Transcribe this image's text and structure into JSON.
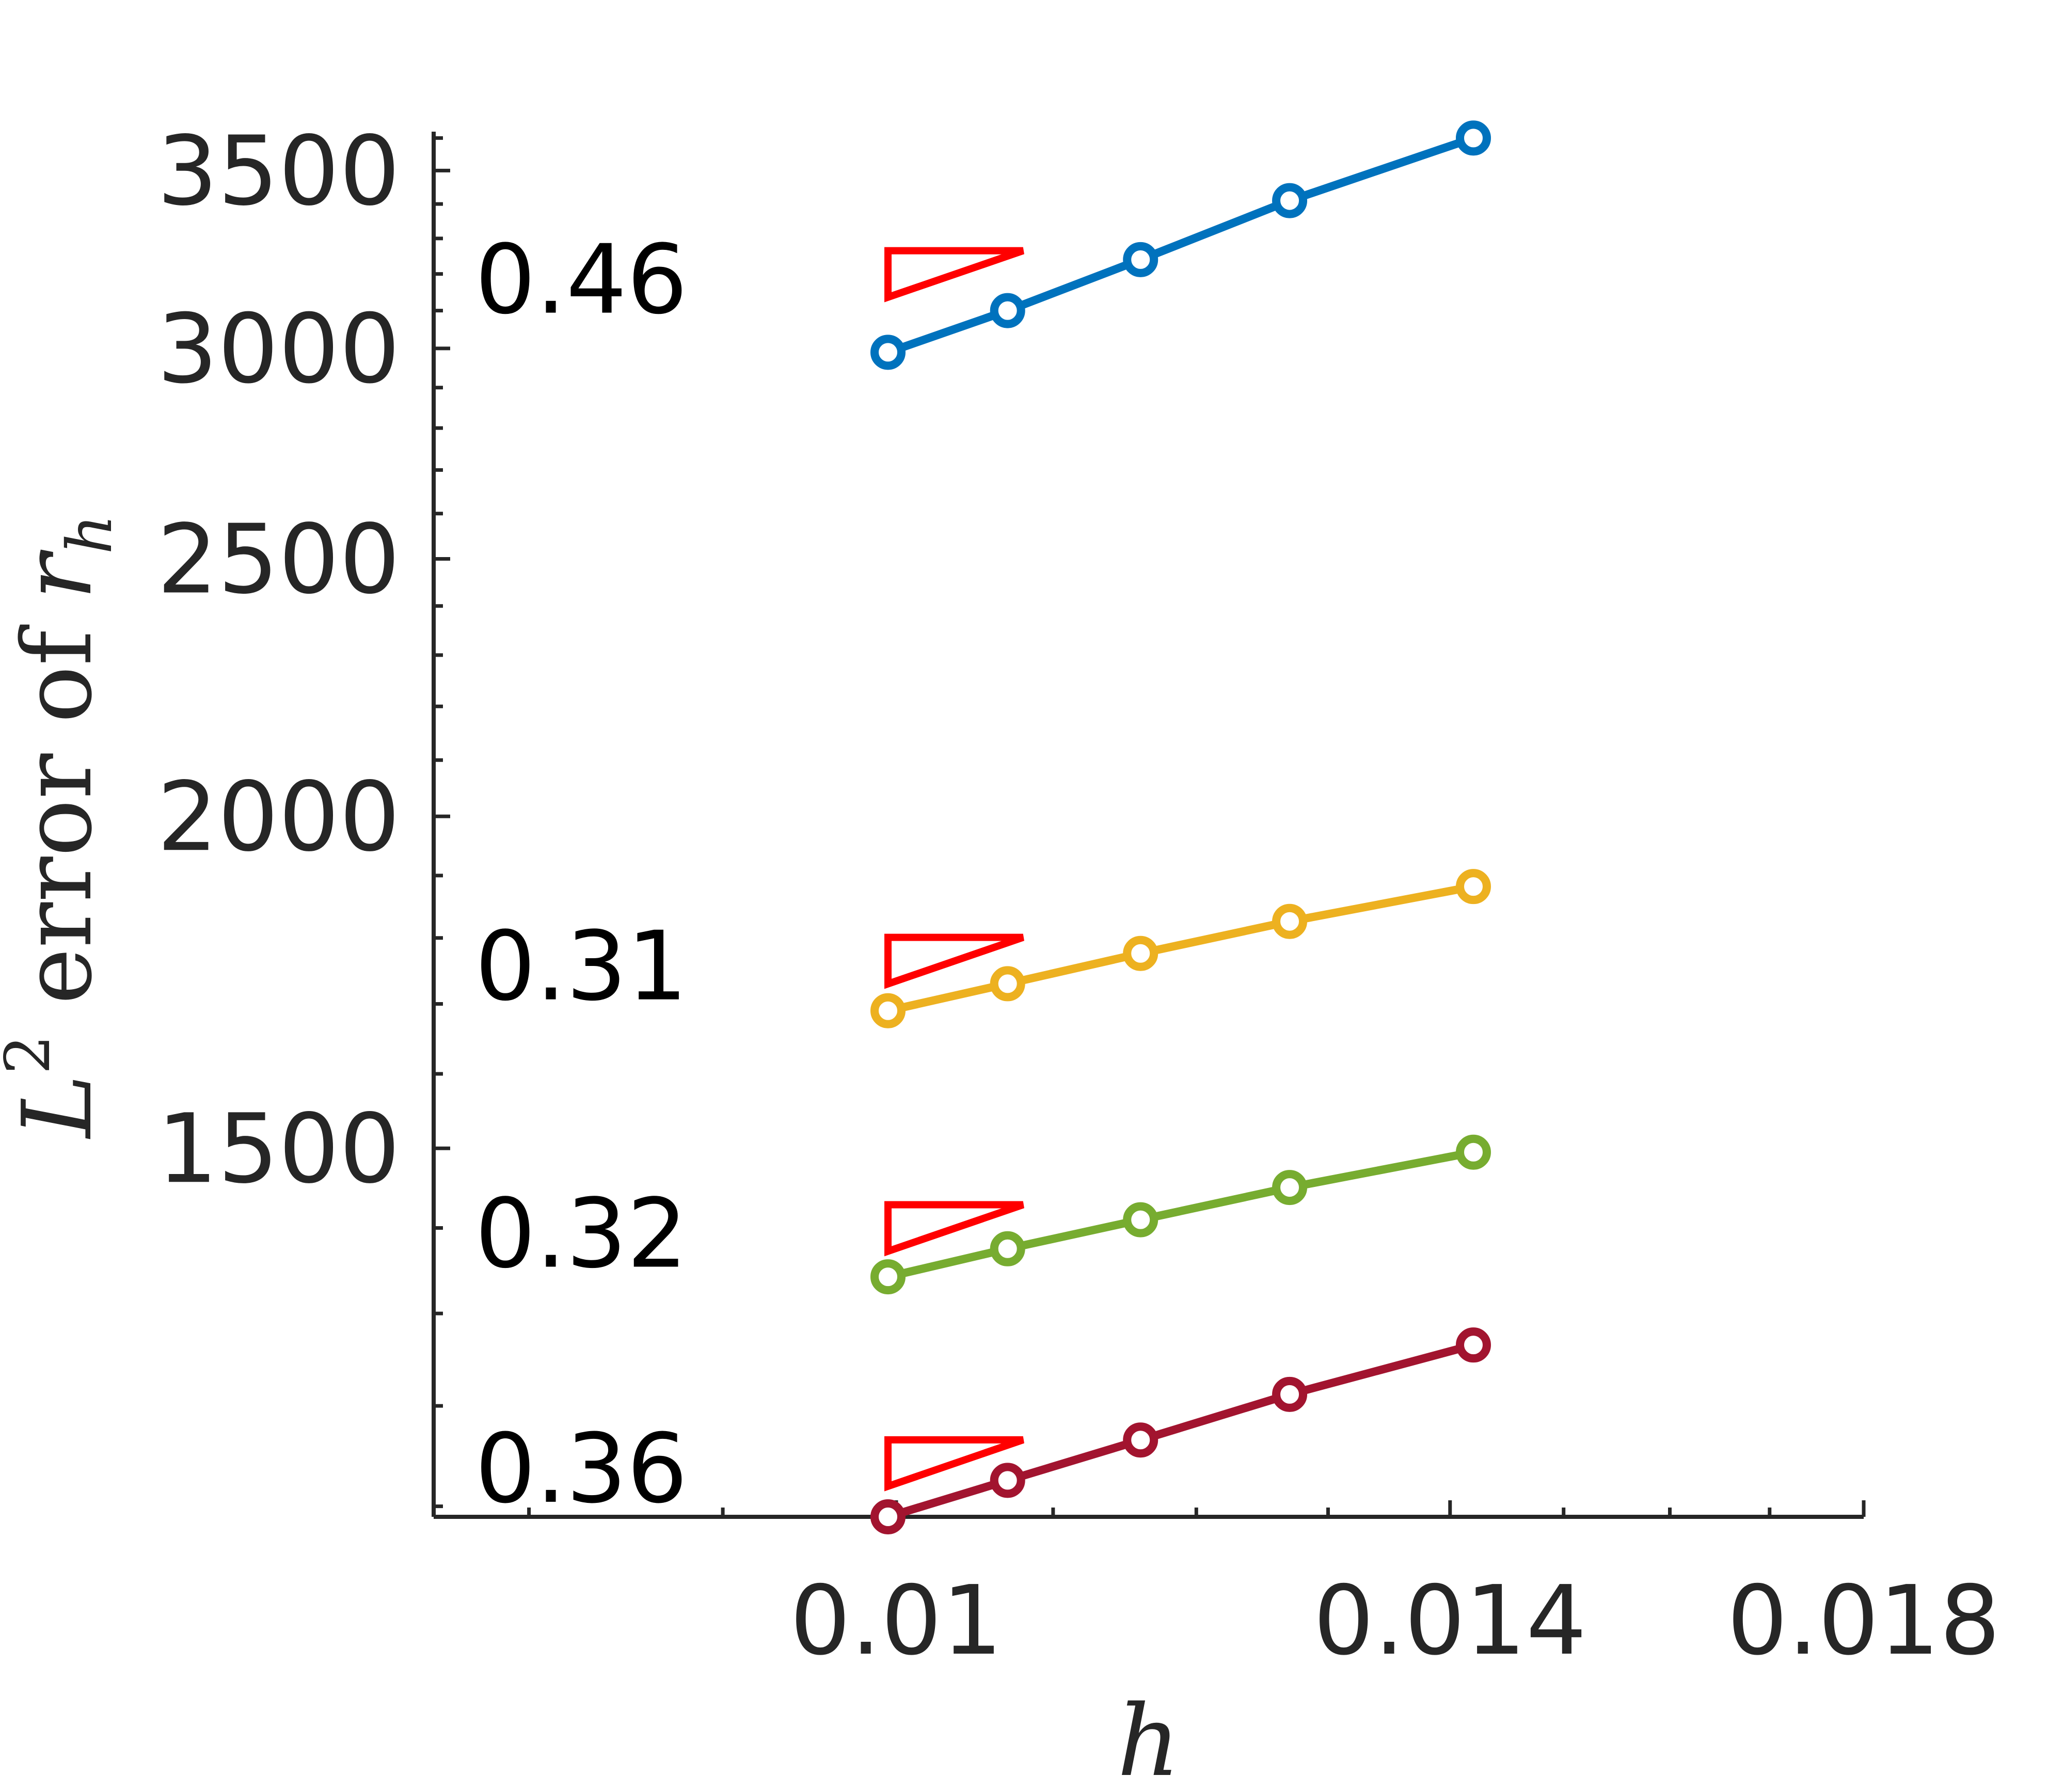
{
  "chart_data": {
    "type": "line",
    "title": "",
    "xlabel": "h",
    "ylabel": {
      "base": "L",
      "superscript": "2",
      "text": " error of ",
      "var": "r",
      "subscript": "h"
    },
    "x_scale": "log",
    "y_scale": "log",
    "xlim": [
      0.00755,
      0.018
    ],
    "ylim": [
      1090,
      3620
    ],
    "x_ticks": [
      0.01,
      0.014,
      0.018
    ],
    "x_tick_labels": [
      "0.01",
      "0.014",
      "0.018"
    ],
    "x_minor_ticks": [
      0.008,
      0.009,
      0.01,
      0.011,
      0.012,
      0.013,
      0.014,
      0.015,
      0.016,
      0.017,
      0.018
    ],
    "y_ticks": [
      1500,
      2000,
      2500,
      3000,
      3500
    ],
    "y_tick_labels": [
      "1500",
      "2000",
      "2500",
      "3000",
      "3500"
    ],
    "y_minor_ticks": [
      1100,
      1200,
      1300,
      1400,
      1500,
      1600,
      1700,
      1800,
      1900,
      2000,
      2100,
      2200,
      2300,
      2400,
      2500,
      2600,
      2700,
      2800,
      2900,
      3000,
      3100,
      3200,
      3300,
      3400,
      3500,
      3600
    ],
    "grid": false,
    "series": [
      {
        "color": "#0072BD",
        "x": [
          0.00995,
          0.0107,
          0.0116,
          0.0127,
          0.0142
        ],
        "y": [
          2990,
          3100,
          3240,
          3410,
          3600
        ],
        "rate_label": "0.46",
        "triangle_y": 3200
      },
      {
        "color": "#EDB120",
        "x": [
          0.00995,
          0.0107,
          0.0116,
          0.0127,
          0.0142
        ],
        "y": [
          1690,
          1730,
          1776,
          1826,
          1882
        ],
        "rate_label": "0.31",
        "triangle_y": 1765
      },
      {
        "color": "#77AC30",
        "x": [
          0.00995,
          0.0107,
          0.0116,
          0.0127,
          0.0142
        ],
        "y": [
          1342,
          1375,
          1410,
          1450,
          1495
        ],
        "rate_label": "0.32",
        "triangle_y": 1400
      },
      {
        "color": "#A2142F",
        "x": [
          0.00995,
          0.0107,
          0.0116,
          0.0127,
          0.0142
        ],
        "y": [
          1090,
          1125,
          1165,
          1212,
          1265
        ],
        "rate_label": "0.36",
        "triangle_y": 1142
      }
    ],
    "triangle_color": "#FF0000",
    "triangle_x": [
      0.00995,
      0.0107
    ]
  }
}
